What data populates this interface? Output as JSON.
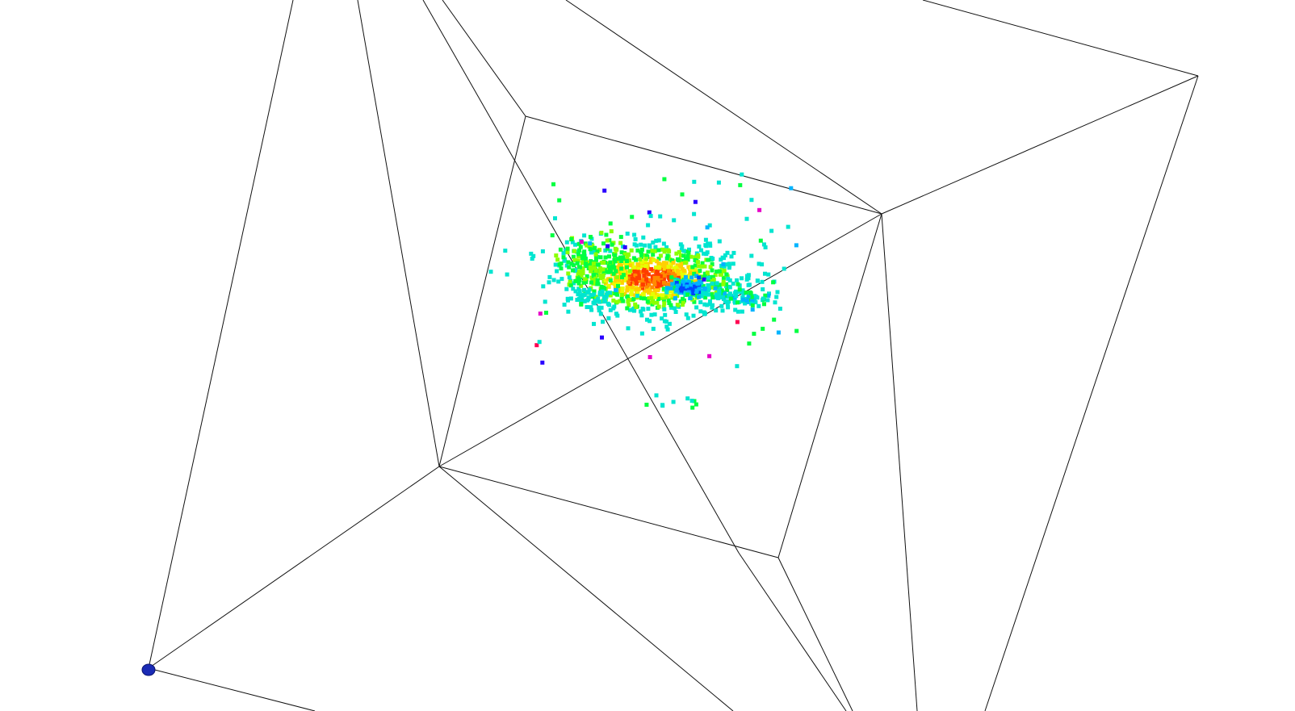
{
  "scene": {
    "background_color": "#ffffff",
    "edge_color": "#111111",
    "marker_color": "#1a2bb5",
    "marker_icon": "origin-marker-icon",
    "colormap": [
      "#2a00ff",
      "#0044ff",
      "#00b4ff",
      "#00e5d0",
      "#00ff40",
      "#8aff00",
      "#e6ff00",
      "#ffd000",
      "#ff8a00",
      "#ff3c00",
      "#ff0050",
      "#e600c8"
    ]
  }
}
